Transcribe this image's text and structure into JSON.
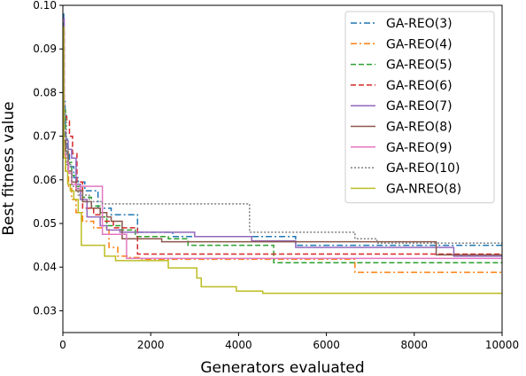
{
  "chart_data": {
    "type": "line",
    "xlabel": "Generators evaluated",
    "ylabel": "Best fitness value",
    "xlim": [
      0,
      10000
    ],
    "ylim": [
      0.025,
      0.1
    ],
    "xticks": [
      0,
      2000,
      4000,
      6000,
      8000,
      10000
    ],
    "xtick_labels": [
      "0",
      "2000",
      "4000",
      "6000",
      "8000",
      "10000"
    ],
    "yticks": [
      0.03,
      0.04,
      0.05,
      0.06,
      0.07,
      0.08,
      0.09,
      0.1
    ],
    "ytick_labels": [
      "0.03",
      "0.04",
      "0.05",
      "0.06",
      "0.07",
      "0.08",
      "0.09",
      "0.10"
    ],
    "grid": false,
    "legend_position": "top-right",
    "series": [
      {
        "name": "GA-REO(3)",
        "color": "#1f77b4",
        "dash": "dashdot",
        "step": true,
        "x": [
          0,
          20,
          50,
          100,
          150,
          250,
          350,
          500,
          800,
          1100,
          1700,
          2500,
          5300,
          10000
        ],
        "y": [
          0.098,
          0.078,
          0.07,
          0.066,
          0.063,
          0.0605,
          0.0595,
          0.0575,
          0.0535,
          0.052,
          0.048,
          0.047,
          0.045,
          0.045
        ]
      },
      {
        "name": "GA-REO(4)",
        "color": "#ff7f0e",
        "dash": "dashdot",
        "step": true,
        "x": [
          0,
          20,
          60,
          130,
          200,
          300,
          450,
          700,
          1050,
          1250,
          1500,
          1800,
          6650,
          10000
        ],
        "y": [
          0.09,
          0.07,
          0.062,
          0.058,
          0.0555,
          0.0525,
          0.0505,
          0.049,
          0.0445,
          0.0425,
          0.0422,
          0.0418,
          0.0388,
          0.0388
        ]
      },
      {
        "name": "GA-REO(5)",
        "color": "#2ca02c",
        "dash": "dashed",
        "step": true,
        "x": [
          0,
          20,
          60,
          120,
          200,
          300,
          450,
          650,
          850,
          1000,
          1300,
          1650,
          2400,
          2850,
          4800,
          10000
        ],
        "y": [
          0.096,
          0.076,
          0.068,
          0.064,
          0.061,
          0.0585,
          0.056,
          0.054,
          0.0515,
          0.0495,
          0.0485,
          0.047,
          0.0465,
          0.045,
          0.041,
          0.041
        ]
      },
      {
        "name": "GA-REO(6)",
        "color": "#d62728",
        "dash": "dashed",
        "step": true,
        "x": [
          0,
          30,
          90,
          150,
          220,
          320,
          450,
          700,
          900,
          1150,
          1700,
          10000
        ],
        "y": [
          0.094,
          0.0745,
          0.0735,
          0.07,
          0.066,
          0.0595,
          0.0535,
          0.052,
          0.0505,
          0.049,
          0.043,
          0.043
        ]
      },
      {
        "name": "GA-REO(7)",
        "color": "#9467bd",
        "dash": "solid",
        "step": true,
        "x": [
          0,
          30,
          70,
          120,
          200,
          300,
          400,
          550,
          850,
          1000,
          1300,
          3000,
          4300,
          5300,
          8900,
          10000
        ],
        "y": [
          0.097,
          0.071,
          0.069,
          0.067,
          0.065,
          0.059,
          0.0555,
          0.0515,
          0.0495,
          0.0485,
          0.048,
          0.047,
          0.046,
          0.0445,
          0.0425,
          0.0425
        ]
      },
      {
        "name": "GA-REO(8)",
        "color": "#8c564b",
        "dash": "solid",
        "step": true,
        "x": [
          0,
          20,
          60,
          120,
          200,
          300,
          450,
          650,
          850,
          1000,
          1100,
          1350,
          2250,
          8500,
          10000
        ],
        "y": [
          0.092,
          0.069,
          0.0665,
          0.062,
          0.0595,
          0.0575,
          0.055,
          0.0535,
          0.0525,
          0.0515,
          0.0505,
          0.0465,
          0.0458,
          0.0428,
          0.0428
        ]
      },
      {
        "name": "GA-REO(9)",
        "color": "#e377c2",
        "dash": "solid",
        "step": true,
        "x": [
          0,
          20,
          70,
          130,
          200,
          300,
          400,
          650,
          900,
          1450,
          10000
        ],
        "y": [
          0.093,
          0.066,
          0.064,
          0.0615,
          0.059,
          0.058,
          0.0585,
          0.0585,
          0.0475,
          0.042,
          0.042
        ]
      },
      {
        "name": "GA-REO(10)",
        "color": "#7f7f7f",
        "dash": "dotted",
        "step": true,
        "x": [
          0,
          20,
          80,
          200,
          350,
          600,
          900,
          1100,
          4250,
          6650,
          7150,
          10000
        ],
        "y": [
          0.088,
          0.075,
          0.0635,
          0.0585,
          0.0565,
          0.055,
          0.0545,
          0.0545,
          0.048,
          0.0465,
          0.0455,
          0.0455
        ]
      },
      {
        "name": "GA-NREO(8)",
        "color": "#bcbd22",
        "dash": "solid",
        "step": true,
        "x": [
          0,
          20,
          60,
          110,
          170,
          250,
          350,
          420,
          800,
          950,
          1200,
          2400,
          3050,
          3150,
          3950,
          4550,
          10000
        ],
        "y": [
          0.095,
          0.065,
          0.062,
          0.059,
          0.0575,
          0.0555,
          0.0525,
          0.045,
          0.045,
          0.0425,
          0.0415,
          0.0398,
          0.0375,
          0.0355,
          0.0345,
          0.034,
          0.034
        ]
      }
    ]
  }
}
